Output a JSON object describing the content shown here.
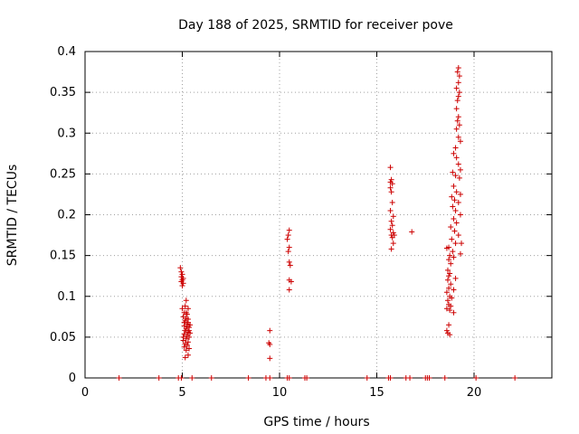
{
  "chart_data": {
    "type": "scatter",
    "title": "Day 188 of 2025, SRMTID for receiver pove",
    "xlabel": "GPS time / hours",
    "ylabel": "SRMTID / TECUs",
    "xlim": [
      0,
      24
    ],
    "ylim": [
      0,
      0.4
    ],
    "xticks": [
      0,
      5,
      10,
      15,
      20
    ],
    "yticks": [
      0,
      0.05,
      0.1,
      0.15,
      0.2,
      0.25,
      0.3,
      0.35,
      0.4
    ],
    "xtick_labels": [
      "0",
      "5",
      "10",
      "15",
      "20"
    ],
    "ytick_labels": [
      "0",
      "0.05",
      "0.1",
      "0.15",
      "0.2",
      "0.25",
      "0.3",
      "0.35",
      "0.4"
    ],
    "grid": true,
    "marker": "+",
    "marker_color": "#cc0000",
    "series": [
      {
        "name": "SRMTID",
        "points": [
          [
            1.75,
            0
          ],
          [
            3.8,
            0
          ],
          [
            4.8,
            0
          ],
          [
            4.95,
            0
          ],
          [
            5.5,
            0
          ],
          [
            6.5,
            0
          ],
          [
            8.4,
            0
          ],
          [
            9.3,
            0
          ],
          [
            9.5,
            0
          ],
          [
            10.4,
            0
          ],
          [
            10.5,
            0
          ],
          [
            11.3,
            0
          ],
          [
            11.4,
            0
          ],
          [
            14.5,
            0
          ],
          [
            15.6,
            0
          ],
          [
            15.7,
            0
          ],
          [
            16.5,
            0
          ],
          [
            16.7,
            0
          ],
          [
            17.5,
            0
          ],
          [
            17.6,
            0
          ],
          [
            17.7,
            0
          ],
          [
            18.5,
            0
          ],
          [
            20.1,
            0
          ],
          [
            22.1,
            0
          ],
          [
            4.9,
            0.135
          ],
          [
            4.95,
            0.13
          ],
          [
            5.0,
            0.127
          ],
          [
            4.95,
            0.124
          ],
          [
            5.05,
            0.122
          ],
          [
            5.0,
            0.12
          ],
          [
            4.95,
            0.118
          ],
          [
            5.05,
            0.116
          ],
          [
            5.0,
            0.113
          ],
          [
            5.2,
            0.095
          ],
          [
            5.15,
            0.088
          ],
          [
            5.3,
            0.085
          ],
          [
            5.0,
            0.085
          ],
          [
            5.1,
            0.08
          ],
          [
            5.25,
            0.078
          ],
          [
            5.05,
            0.075
          ],
          [
            5.2,
            0.073
          ],
          [
            5.15,
            0.07
          ],
          [
            5.3,
            0.068
          ],
          [
            5.25,
            0.066
          ],
          [
            5.1,
            0.064
          ],
          [
            5.35,
            0.062
          ],
          [
            5.2,
            0.06
          ],
          [
            5.15,
            0.058
          ],
          [
            5.3,
            0.056
          ],
          [
            5.1,
            0.054
          ],
          [
            5.25,
            0.052
          ],
          [
            5.35,
            0.05
          ],
          [
            5.2,
            0.048
          ],
          [
            5.05,
            0.046
          ],
          [
            5.3,
            0.044
          ],
          [
            5.15,
            0.042
          ],
          [
            5.25,
            0.04
          ],
          [
            5.1,
            0.038
          ],
          [
            5.35,
            0.036
          ],
          [
            5.2,
            0.034
          ],
          [
            5.3,
            0.028
          ],
          [
            5.15,
            0.025
          ],
          [
            5.25,
            0.063
          ],
          [
            5.35,
            0.058
          ],
          [
            5.1,
            0.068
          ],
          [
            5.3,
            0.072
          ],
          [
            5.2,
            0.08
          ],
          [
            5.05,
            0.05
          ],
          [
            5.4,
            0.065
          ],
          [
            5.4,
            0.055
          ],
          [
            9.5,
            0.058
          ],
          [
            9.45,
            0.043
          ],
          [
            9.5,
            0.041
          ],
          [
            9.5,
            0.024
          ],
          [
            10.5,
            0.181
          ],
          [
            10.45,
            0.175
          ],
          [
            10.4,
            0.17
          ],
          [
            10.5,
            0.16
          ],
          [
            10.45,
            0.155
          ],
          [
            10.5,
            0.142
          ],
          [
            10.55,
            0.138
          ],
          [
            10.5,
            0.12
          ],
          [
            10.6,
            0.118
          ],
          [
            10.5,
            0.108
          ],
          [
            15.7,
            0.258
          ],
          [
            15.75,
            0.243
          ],
          [
            15.7,
            0.24
          ],
          [
            15.8,
            0.238
          ],
          [
            15.7,
            0.233
          ],
          [
            15.75,
            0.228
          ],
          [
            15.8,
            0.215
          ],
          [
            15.7,
            0.205
          ],
          [
            15.85,
            0.198
          ],
          [
            15.75,
            0.192
          ],
          [
            15.8,
            0.187
          ],
          [
            15.7,
            0.182
          ],
          [
            15.85,
            0.178
          ],
          [
            15.75,
            0.175
          ],
          [
            15.9,
            0.175
          ],
          [
            15.8,
            0.172
          ],
          [
            15.85,
            0.165
          ],
          [
            15.75,
            0.158
          ],
          [
            16.8,
            0.179
          ],
          [
            19.2,
            0.38
          ],
          [
            19.15,
            0.375
          ],
          [
            19.25,
            0.37
          ],
          [
            19.2,
            0.362
          ],
          [
            19.1,
            0.355
          ],
          [
            19.25,
            0.35
          ],
          [
            19.2,
            0.345
          ],
          [
            19.15,
            0.34
          ],
          [
            19.1,
            0.33
          ],
          [
            19.2,
            0.32
          ],
          [
            19.15,
            0.315
          ],
          [
            19.25,
            0.31
          ],
          [
            19.1,
            0.305
          ],
          [
            19.2,
            0.295
          ],
          [
            19.3,
            0.29
          ],
          [
            19.05,
            0.282
          ],
          [
            18.95,
            0.275
          ],
          [
            19.1,
            0.27
          ],
          [
            19.2,
            0.262
          ],
          [
            19.3,
            0.255
          ],
          [
            18.9,
            0.252
          ],
          [
            19.05,
            0.248
          ],
          [
            19.25,
            0.245
          ],
          [
            18.95,
            0.235
          ],
          [
            19.1,
            0.228
          ],
          [
            19.3,
            0.225
          ],
          [
            18.85,
            0.222
          ],
          [
            19.0,
            0.218
          ],
          [
            19.2,
            0.215
          ],
          [
            18.9,
            0.21
          ],
          [
            19.05,
            0.205
          ],
          [
            19.3,
            0.2
          ],
          [
            18.95,
            0.195
          ],
          [
            19.1,
            0.19
          ],
          [
            18.8,
            0.185
          ],
          [
            19.0,
            0.18
          ],
          [
            19.2,
            0.175
          ],
          [
            18.85,
            0.17
          ],
          [
            19.05,
            0.165
          ],
          [
            19.35,
            0.165
          ],
          [
            18.7,
            0.16
          ],
          [
            18.6,
            0.159
          ],
          [
            18.9,
            0.155
          ],
          [
            19.3,
            0.152
          ],
          [
            18.75,
            0.15
          ],
          [
            18.95,
            0.148
          ],
          [
            18.7,
            0.145
          ],
          [
            18.8,
            0.14
          ],
          [
            18.65,
            0.132
          ],
          [
            18.75,
            0.128
          ],
          [
            18.7,
            0.125
          ],
          [
            19.05,
            0.122
          ],
          [
            18.65,
            0.12
          ],
          [
            18.8,
            0.115
          ],
          [
            18.7,
            0.11
          ],
          [
            18.95,
            0.108
          ],
          [
            18.6,
            0.105
          ],
          [
            18.75,
            0.1
          ],
          [
            18.85,
            0.098
          ],
          [
            18.65,
            0.095
          ],
          [
            18.7,
            0.09
          ],
          [
            18.8,
            0.088
          ],
          [
            18.6,
            0.085
          ],
          [
            18.75,
            0.083
          ],
          [
            18.95,
            0.08
          ],
          [
            18.7,
            0.065
          ],
          [
            18.6,
            0.058
          ],
          [
            18.65,
            0.055
          ],
          [
            18.75,
            0.053
          ]
        ]
      }
    ]
  }
}
